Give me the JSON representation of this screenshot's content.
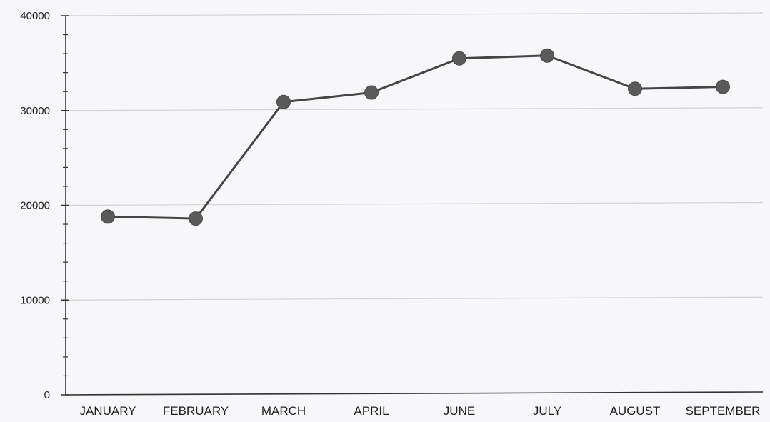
{
  "chart_data": {
    "type": "line",
    "categories": [
      "JANUARY",
      "FEBRUARY",
      "MARCH",
      "APRIL",
      "JUNE",
      "JULY",
      "AUGUST",
      "SEPTEMBER"
    ],
    "series": [
      {
        "values": [
          18800,
          18600,
          30900,
          31900,
          35500,
          35800,
          32300,
          32500
        ]
      }
    ],
    "yticks": [
      "0",
      "10000",
      "20000",
      "30000",
      "40000"
    ],
    "ylim": [
      0,
      40000
    ],
    "title": "",
    "xlabel": "",
    "ylabel": "",
    "grid": true,
    "colors": {
      "line": "#454545",
      "marker": "#5a5a5a",
      "grid": "#d2d2d2",
      "axis": "#333333"
    }
  }
}
